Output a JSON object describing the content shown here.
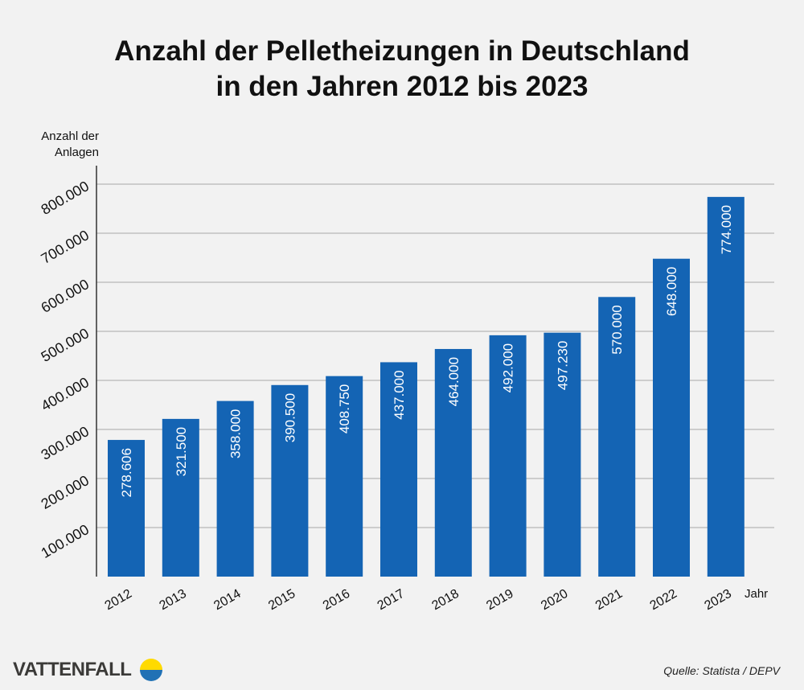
{
  "chart_data": {
    "type": "bar",
    "title": "Anzahl der Pelletheizungen in Deutschland in den Jahren 2012 bis 2023",
    "title_lines": [
      "Anzahl der Pelletheizungen in Deutschland",
      "in den Jahren 2012 bis 2023"
    ],
    "ylabel": "Anzahl der Anlagen",
    "xlabel": "Jahr",
    "categories": [
      "2012",
      "2013",
      "2014",
      "2015",
      "2016",
      "2017",
      "2018",
      "2019",
      "2020",
      "2021",
      "2022",
      "2023"
    ],
    "values": [
      278606,
      321500,
      358000,
      390500,
      408750,
      437000,
      464000,
      492000,
      497230,
      570000,
      648000,
      774000
    ],
    "data_labels": [
      "278.606",
      "321.500",
      "358.000",
      "390.500",
      "408.750",
      "437.000",
      "464.000",
      "492.000",
      "497.230",
      "570.000",
      "648.000",
      "774.000"
    ],
    "ylim": [
      0,
      830000
    ],
    "yticks": [
      100000,
      200000,
      300000,
      400000,
      500000,
      600000,
      700000,
      800000
    ],
    "ytick_labels": [
      "100.000",
      "200.000",
      "300.000",
      "400.000",
      "500.000",
      "600.000",
      "700.000",
      "800.000"
    ],
    "grid": true,
    "bar_color": "#1464b4",
    "grid_color": "#a8a8a8"
  },
  "footer": {
    "brand": "VATTENFALL",
    "brand_colors": {
      "yellow": "#ffda00",
      "blue": "#2071b5"
    },
    "source": "Quelle: Statista / DEPV"
  }
}
